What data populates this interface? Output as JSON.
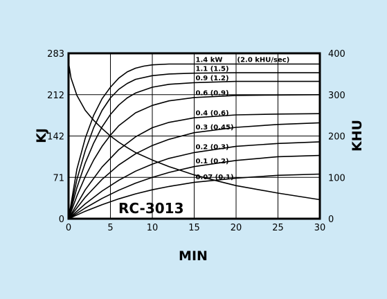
{
  "chart_data": {
    "type": "line",
    "model_label": "RC-3013",
    "xlabel": "MIN",
    "ylabel_left": "KJ",
    "ylabel_right": "KHU",
    "xlim": [
      0,
      30
    ],
    "ylim_left": [
      0,
      283
    ],
    "ylim_right": [
      0,
      400
    ],
    "x_ticks": [
      "0",
      "5",
      "10",
      "15",
      "20",
      "25",
      "30"
    ],
    "y_left_ticks": [
      "0",
      "71",
      "142",
      "212",
      "283"
    ],
    "y_right_ticks": [
      "0",
      "100",
      "200",
      "300",
      "400"
    ],
    "grid": true,
    "heating_series": [
      {
        "label": "1.4 kW",
        "label_extra": "(2.0 kHU/sec)",
        "x": [
          0,
          1,
          2,
          3,
          4,
          5,
          6,
          7,
          8,
          9,
          10,
          12,
          15,
          20,
          25,
          30
        ],
        "y": [
          0,
          120,
          195,
          250,
          290,
          318,
          340,
          355,
          364,
          369,
          372,
          374,
          374,
          374,
          374,
          374
        ]
      },
      {
        "label": "1.1 (1.5)",
        "x": [
          0,
          1,
          2,
          3,
          4,
          5,
          6,
          7,
          8,
          10,
          12,
          15,
          20,
          25,
          30
        ],
        "y": [
          0,
          95,
          165,
          220,
          262,
          292,
          313,
          327,
          337,
          346,
          350,
          352,
          353,
          353,
          353
        ]
      },
      {
        "label": "0.9 (1.2)",
        "x": [
          0,
          1,
          2,
          3,
          4,
          5,
          6,
          7,
          8,
          10,
          12,
          15,
          20,
          25,
          30
        ],
        "y": [
          0,
          75,
          135,
          183,
          222,
          252,
          275,
          292,
          304,
          318,
          325,
          329,
          332,
          332,
          332
        ]
      },
      {
        "label": "0.6 (0.9)",
        "x": [
          0,
          1,
          2,
          3,
          4,
          5,
          6,
          8,
          10,
          12,
          15,
          20,
          25,
          30
        ],
        "y": [
          0,
          55,
          102,
          142,
          175,
          202,
          225,
          256,
          274,
          285,
          293,
          298,
          299,
          300
        ]
      },
      {
        "label": "0.4 (0.6)",
        "x": [
          0,
          2,
          4,
          6,
          8,
          10,
          12,
          15,
          20,
          25,
          30
        ],
        "y": [
          0,
          70,
          125,
          167,
          198,
          220,
          233,
          244,
          251,
          253,
          254
        ]
      },
      {
        "label": "0.3 (0.45)",
        "x": [
          0,
          2,
          4,
          6,
          8,
          10,
          12,
          15,
          20,
          25,
          30
        ],
        "y": [
          0,
          52,
          95,
          130,
          157,
          177,
          192,
          208,
          221,
          228,
          232
        ]
      },
      {
        "label": "0.2 (0.3)",
        "x": [
          0,
          2,
          4,
          6,
          8,
          10,
          12,
          15,
          20,
          25,
          30
        ],
        "y": [
          0,
          36,
          67,
          93,
          115,
          132,
          146,
          160,
          175,
          182,
          186
        ]
      },
      {
        "label": "0.1 (0.2)",
        "x": [
          0,
          2,
          4,
          6,
          8,
          10,
          12,
          15,
          20,
          25,
          30
        ],
        "y": [
          0,
          26,
          49,
          69,
          86,
          100,
          112,
          126,
          141,
          150,
          153
        ]
      },
      {
        "label": "0.07 (0.1)",
        "x": [
          0,
          2,
          4,
          6,
          8,
          10,
          12,
          15,
          20,
          25,
          30
        ],
        "y": [
          0,
          18,
          34,
          48,
          60,
          70,
          78,
          88,
          98,
          105,
          108
        ]
      }
    ],
    "cooling_series": {
      "x": [
        0,
        0.3,
        1,
        2,
        3,
        4,
        5,
        6,
        7,
        8,
        10,
        12,
        15,
        18,
        20,
        25,
        30
      ],
      "y": [
        378,
        340,
        298,
        262,
        238,
        218,
        200,
        185,
        172,
        160,
        142,
        126,
        106,
        90,
        80,
        62,
        46
      ]
    }
  }
}
